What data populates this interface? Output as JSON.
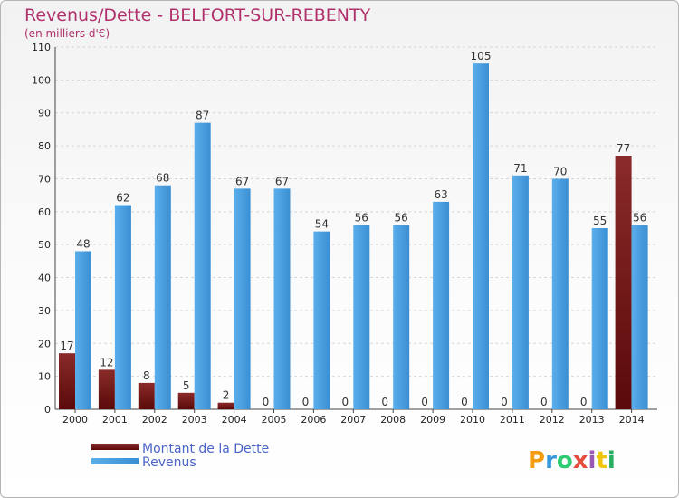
{
  "chart_data": {
    "type": "bar",
    "title": "Revenus/Dette - BELFORT-SUR-REBENTY",
    "subtitle": "(en milliers d'€)",
    "categories": [
      "2000",
      "2001",
      "2002",
      "2003",
      "2004",
      "2005",
      "2006",
      "2007",
      "2008",
      "2009",
      "2010",
      "2011",
      "2012",
      "2013",
      "2014"
    ],
    "series": [
      {
        "name": "Montant de la Dette",
        "color": "#7a1515",
        "values": [
          17,
          12,
          8,
          5,
          2,
          0,
          0,
          0,
          0,
          0,
          0,
          0,
          0,
          0,
          77
        ]
      },
      {
        "name": "Revenus",
        "color": "#4a9fe0",
        "values": [
          48,
          62,
          68,
          87,
          67,
          67,
          54,
          56,
          56,
          63,
          105,
          71,
          70,
          55,
          56
        ]
      }
    ],
    "ylim": [
      0,
      110
    ],
    "yticks": [
      0,
      10,
      20,
      30,
      40,
      50,
      60,
      70,
      80,
      90,
      100,
      110
    ],
    "grid": true,
    "legend": "bottom-left"
  },
  "logo": {
    "letters": [
      "P",
      "r",
      "o",
      "x",
      "i",
      "t",
      "i"
    ],
    "colors": [
      "#f39c12",
      "#3498db",
      "#2ecc71",
      "#e74c3c",
      "#9b59b6",
      "#f1c40f",
      "#27ae60"
    ]
  }
}
